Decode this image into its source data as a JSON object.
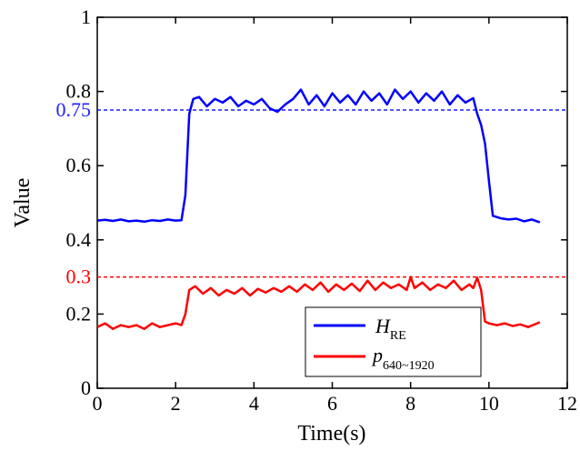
{
  "chart_data": {
    "type": "line",
    "title": "",
    "xlabel": "Time(s)",
    "ylabel": "Value",
    "xlim": [
      0,
      12
    ],
    "ylim": [
      0,
      1
    ],
    "x_ticks": [
      "0",
      "2",
      "4",
      "6",
      "8",
      "10",
      "12"
    ],
    "y_ticks": [
      "0",
      "0.2",
      "0.4",
      "0.6",
      "0.8",
      "1"
    ],
    "grid": false,
    "legend_position": "bottom-right",
    "reference_lines": [
      {
        "y": 0.75,
        "label": "0.75",
        "color": "#1f1fff",
        "style": "dashed"
      },
      {
        "y": 0.3,
        "label": "0.3",
        "color": "#ff0000",
        "style": "dashed"
      }
    ],
    "series": [
      {
        "name": "H",
        "name_subscript": "RE",
        "color": "#0000ff",
        "x": [
          0.0,
          0.2,
          0.4,
          0.6,
          0.8,
          1.0,
          1.2,
          1.4,
          1.6,
          1.8,
          2.0,
          2.15,
          2.25,
          2.35,
          2.45,
          2.6,
          2.8,
          3.0,
          3.2,
          3.4,
          3.6,
          3.8,
          4.0,
          4.2,
          4.4,
          4.6,
          4.8,
          5.0,
          5.2,
          5.4,
          5.6,
          5.8,
          6.0,
          6.2,
          6.4,
          6.6,
          6.8,
          7.0,
          7.2,
          7.4,
          7.6,
          7.8,
          8.0,
          8.2,
          8.4,
          8.6,
          8.8,
          9.0,
          9.2,
          9.4,
          9.6,
          9.7,
          9.8,
          9.9,
          10.0,
          10.1,
          10.3,
          10.5,
          10.7,
          10.9,
          11.1,
          11.3
        ],
        "values": [
          0.452,
          0.454,
          0.451,
          0.455,
          0.45,
          0.452,
          0.449,
          0.453,
          0.451,
          0.455,
          0.452,
          0.453,
          0.52,
          0.74,
          0.78,
          0.785,
          0.76,
          0.78,
          0.77,
          0.785,
          0.76,
          0.775,
          0.765,
          0.78,
          0.755,
          0.745,
          0.765,
          0.78,
          0.805,
          0.765,
          0.79,
          0.76,
          0.795,
          0.77,
          0.79,
          0.765,
          0.8,
          0.775,
          0.795,
          0.765,
          0.805,
          0.78,
          0.8,
          0.77,
          0.795,
          0.775,
          0.8,
          0.765,
          0.79,
          0.77,
          0.782,
          0.74,
          0.71,
          0.66,
          0.56,
          0.465,
          0.458,
          0.455,
          0.457,
          0.45,
          0.455,
          0.447
        ]
      },
      {
        "name": "p",
        "name_subscript": "640~1920",
        "color": "#ff0000",
        "x": [
          0.0,
          0.2,
          0.4,
          0.6,
          0.8,
          1.0,
          1.2,
          1.4,
          1.6,
          1.8,
          2.0,
          2.15,
          2.25,
          2.35,
          2.5,
          2.7,
          2.9,
          3.1,
          3.3,
          3.5,
          3.7,
          3.9,
          4.1,
          4.3,
          4.5,
          4.7,
          4.9,
          5.1,
          5.3,
          5.5,
          5.7,
          5.9,
          6.1,
          6.3,
          6.5,
          6.7,
          6.9,
          7.1,
          7.3,
          7.5,
          7.7,
          7.9,
          8.0,
          8.1,
          8.3,
          8.5,
          8.7,
          8.9,
          9.1,
          9.3,
          9.5,
          9.6,
          9.7,
          9.8,
          9.9,
          10.0,
          10.2,
          10.4,
          10.6,
          10.8,
          11.0,
          11.3
        ],
        "values": [
          0.165,
          0.175,
          0.16,
          0.17,
          0.165,
          0.17,
          0.16,
          0.175,
          0.165,
          0.17,
          0.175,
          0.17,
          0.2,
          0.265,
          0.275,
          0.255,
          0.27,
          0.25,
          0.265,
          0.255,
          0.27,
          0.25,
          0.268,
          0.258,
          0.27,
          0.26,
          0.275,
          0.26,
          0.28,
          0.265,
          0.285,
          0.26,
          0.28,
          0.265,
          0.282,
          0.262,
          0.29,
          0.265,
          0.285,
          0.27,
          0.28,
          0.265,
          0.3,
          0.27,
          0.285,
          0.265,
          0.28,
          0.27,
          0.29,
          0.265,
          0.28,
          0.27,
          0.298,
          0.265,
          0.18,
          0.175,
          0.17,
          0.175,
          0.168,
          0.172,
          0.165,
          0.178
        ]
      }
    ]
  }
}
